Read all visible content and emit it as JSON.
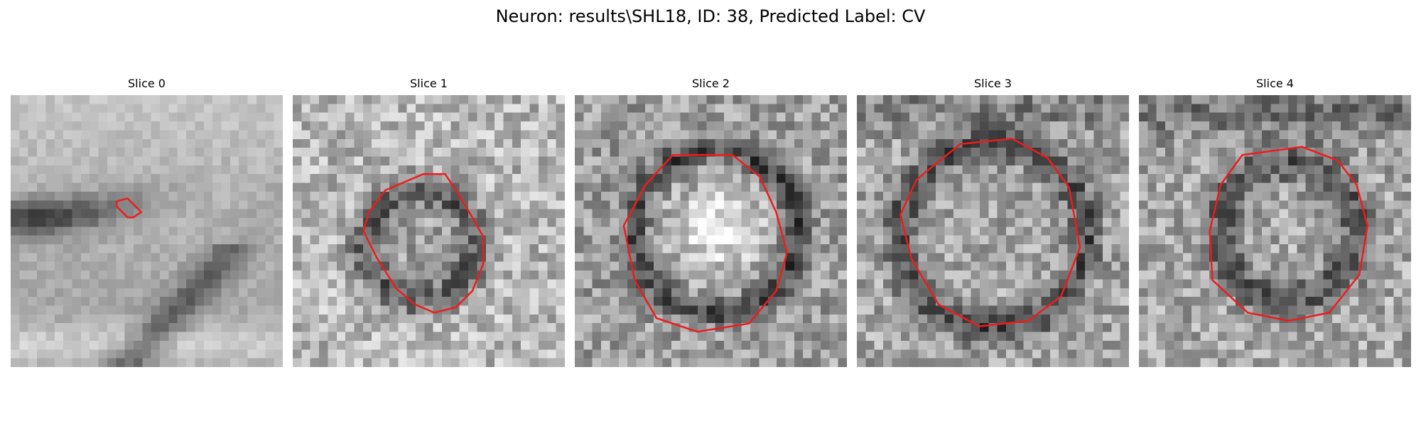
{
  "figure": {
    "title": "Neuron: results\\SHL18, ID: 38, Predicted Label: CV"
  },
  "colors": {
    "contour": "#ee1c1c",
    "background": "#ffffff"
  },
  "slices": [
    {
      "label": "Slice 0"
    },
    {
      "label": "Slice 1"
    },
    {
      "label": "Slice 2"
    },
    {
      "label": "Slice 3"
    },
    {
      "label": "Slice 4"
    }
  ]
}
